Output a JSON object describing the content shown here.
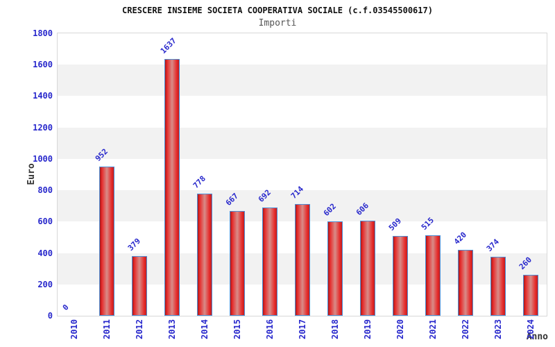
{
  "chart_data": {
    "type": "bar",
    "title": "CRESCERE INSIEME SOCIETA COOPERATIVA SOCIALE (c.f.03545500617)",
    "subtitle": "Importi",
    "ylabel": "Euro",
    "xlabel": "Anno",
    "categories": [
      "2010",
      "2011",
      "2012",
      "2013",
      "2014",
      "2015",
      "2016",
      "2017",
      "2018",
      "2019",
      "2020",
      "2021",
      "2022",
      "2023",
      "2024"
    ],
    "values": [
      0,
      952,
      379,
      1637,
      778,
      667,
      692,
      714,
      602,
      606,
      509,
      515,
      420,
      374,
      260
    ],
    "ylim": [
      0,
      1800
    ],
    "ytick_step": 200,
    "yticks": [
      0,
      200,
      400,
      600,
      800,
      1000,
      1200,
      1400,
      1600,
      1800
    ],
    "grid": "alternating horizontal bands, no vertical grid",
    "legend_position": "none",
    "colors": {
      "bar_fill_main": "#e62b2b",
      "bar_fill_center": "#d88c88",
      "bar_fill_edge_dark": "#a81818",
      "bar_border": "#4d8fd6",
      "tick_label_blue": "#2828cc",
      "value_label_blue": "#2828cc",
      "band_gray": "#f2f2f2",
      "plot_border_gray": "#d8d8d8",
      "title_black": "#111111",
      "subtitle_gray": "#555555",
      "axis_title_dark": "#333333",
      "background": "#ffffff"
    }
  }
}
